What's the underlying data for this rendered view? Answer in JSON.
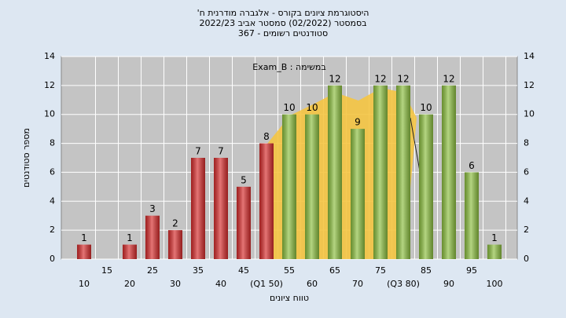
{
  "chart_data": {
    "type": "bar",
    "title": "היסטוגרמת ציונים בקורס - אלגברה מודרנית ח'",
    "subtitle": "בסמסטר (02/2022) סמסטר אביב 2022/23",
    "subtitle2": "סטודנטים רשומים - 367",
    "annotation": "במשימה : Exam_B",
    "xlabel": "טווח ציונים",
    "ylabel": "מספר סטודנטים",
    "categories": [
      "10",
      "15",
      "20",
      "25",
      "30",
      "35",
      "40",
      "45",
      "(Q1 50)",
      "55",
      "60",
      "65",
      "70",
      "75",
      "(Q3 80)",
      "85",
      "90",
      "95",
      "100"
    ],
    "values": [
      1,
      null,
      1,
      3,
      2,
      7,
      7,
      5,
      8,
      10,
      10,
      12,
      9,
      12,
      12,
      10,
      12,
      6,
      1
    ],
    "bar_colors": [
      "#d62b2b",
      "#d62b2b",
      "#d62b2b",
      "#d62b2b",
      "#d62b2b",
      "#d62b2b",
      "#d62b2b",
      "#d62b2b",
      "#d62b2b",
      "#8cbf3f",
      "#8cbf3f",
      "#8cbf3f",
      "#8cbf3f",
      "#8cbf3f",
      "#8cbf3f",
      "#8cbf3f",
      "#8cbf3f",
      "#8cbf3f",
      "#8cbf3f"
    ],
    "ylim": [
      0,
      14
    ],
    "yticks": [
      0,
      2,
      4,
      6,
      8,
      10,
      12,
      14
    ],
    "grid": true
  }
}
